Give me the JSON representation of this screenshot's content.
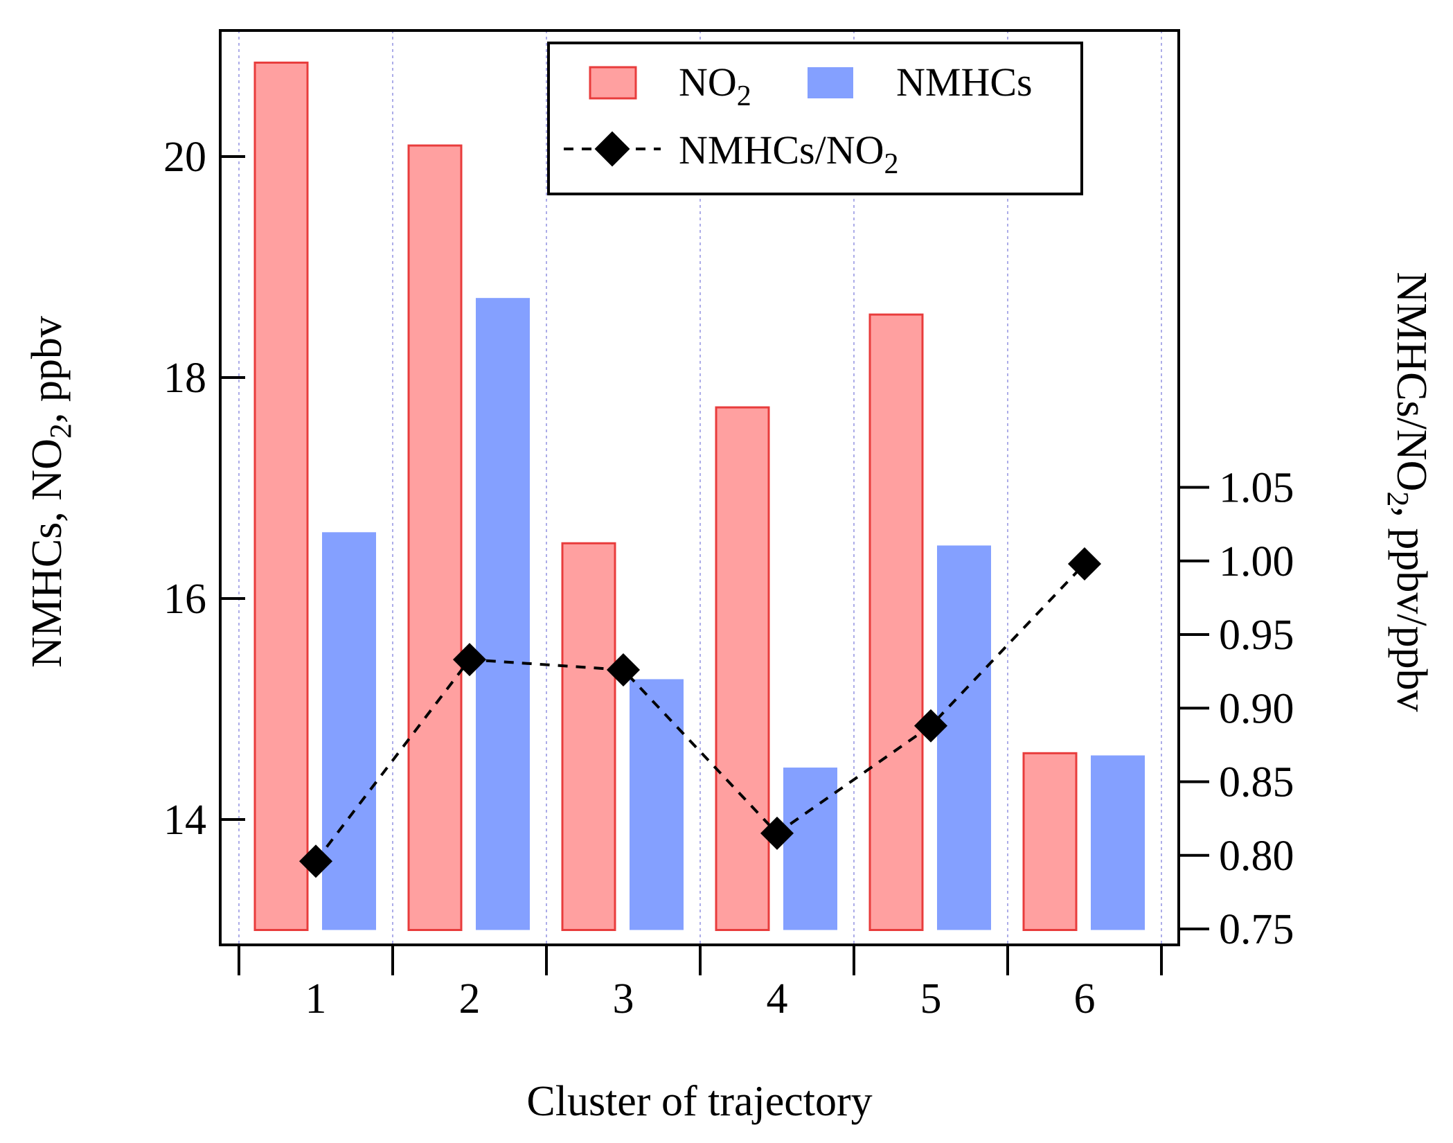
{
  "chart_data": {
    "type": "bar",
    "categories": [
      "1",
      "2",
      "3",
      "4",
      "5",
      "6"
    ],
    "series": [
      {
        "name": "NO2",
        "axis": "left",
        "type": "bar",
        "values": [
          20.85,
          20.1,
          16.5,
          17.73,
          18.57,
          14.6
        ],
        "color": "#ffa0a0",
        "stroke": "#e83c3c"
      },
      {
        "name": "NMHCs",
        "axis": "left",
        "type": "bar",
        "values": [
          16.6,
          18.72,
          15.27,
          14.47,
          16.48,
          14.58
        ],
        "color": "#84a0ff"
      },
      {
        "name": "NMHCs/NO2",
        "axis": "right",
        "type": "line",
        "values": [
          0.796,
          0.933,
          0.926,
          0.815,
          0.888,
          0.998
        ],
        "color": "#000000",
        "marker": "diamond",
        "line_style": "dashed"
      }
    ],
    "left_axis": {
      "label_main": "NMHCs, NO",
      "label_sub": "2",
      "label_end": ", ppbv",
      "ylim": [
        13,
        21.2
      ],
      "ticks": [
        "14",
        "16",
        "18",
        "20"
      ]
    },
    "right_axis": {
      "label_main": "NMHCs/NO",
      "label_sub": "2",
      "label_end": ", ppbv/ppbv",
      "ylim": [
        0.75,
        1.055
      ],
      "ticks": [
        "0.75",
        "0.80",
        "0.85",
        "0.90",
        "0.95",
        "1.00",
        "1.05"
      ]
    },
    "x_axis": {
      "label": "Cluster of trajectory"
    },
    "legend": {
      "placement": "top-center",
      "no2_main": "NO",
      "no2_sub": "2",
      "nmhcs": "NMHCs",
      "ratio_main": "NMHCs/NO",
      "ratio_sub": "2"
    },
    "grid": {
      "vertical": true,
      "style": "dotted",
      "color": "#9090e0"
    }
  }
}
